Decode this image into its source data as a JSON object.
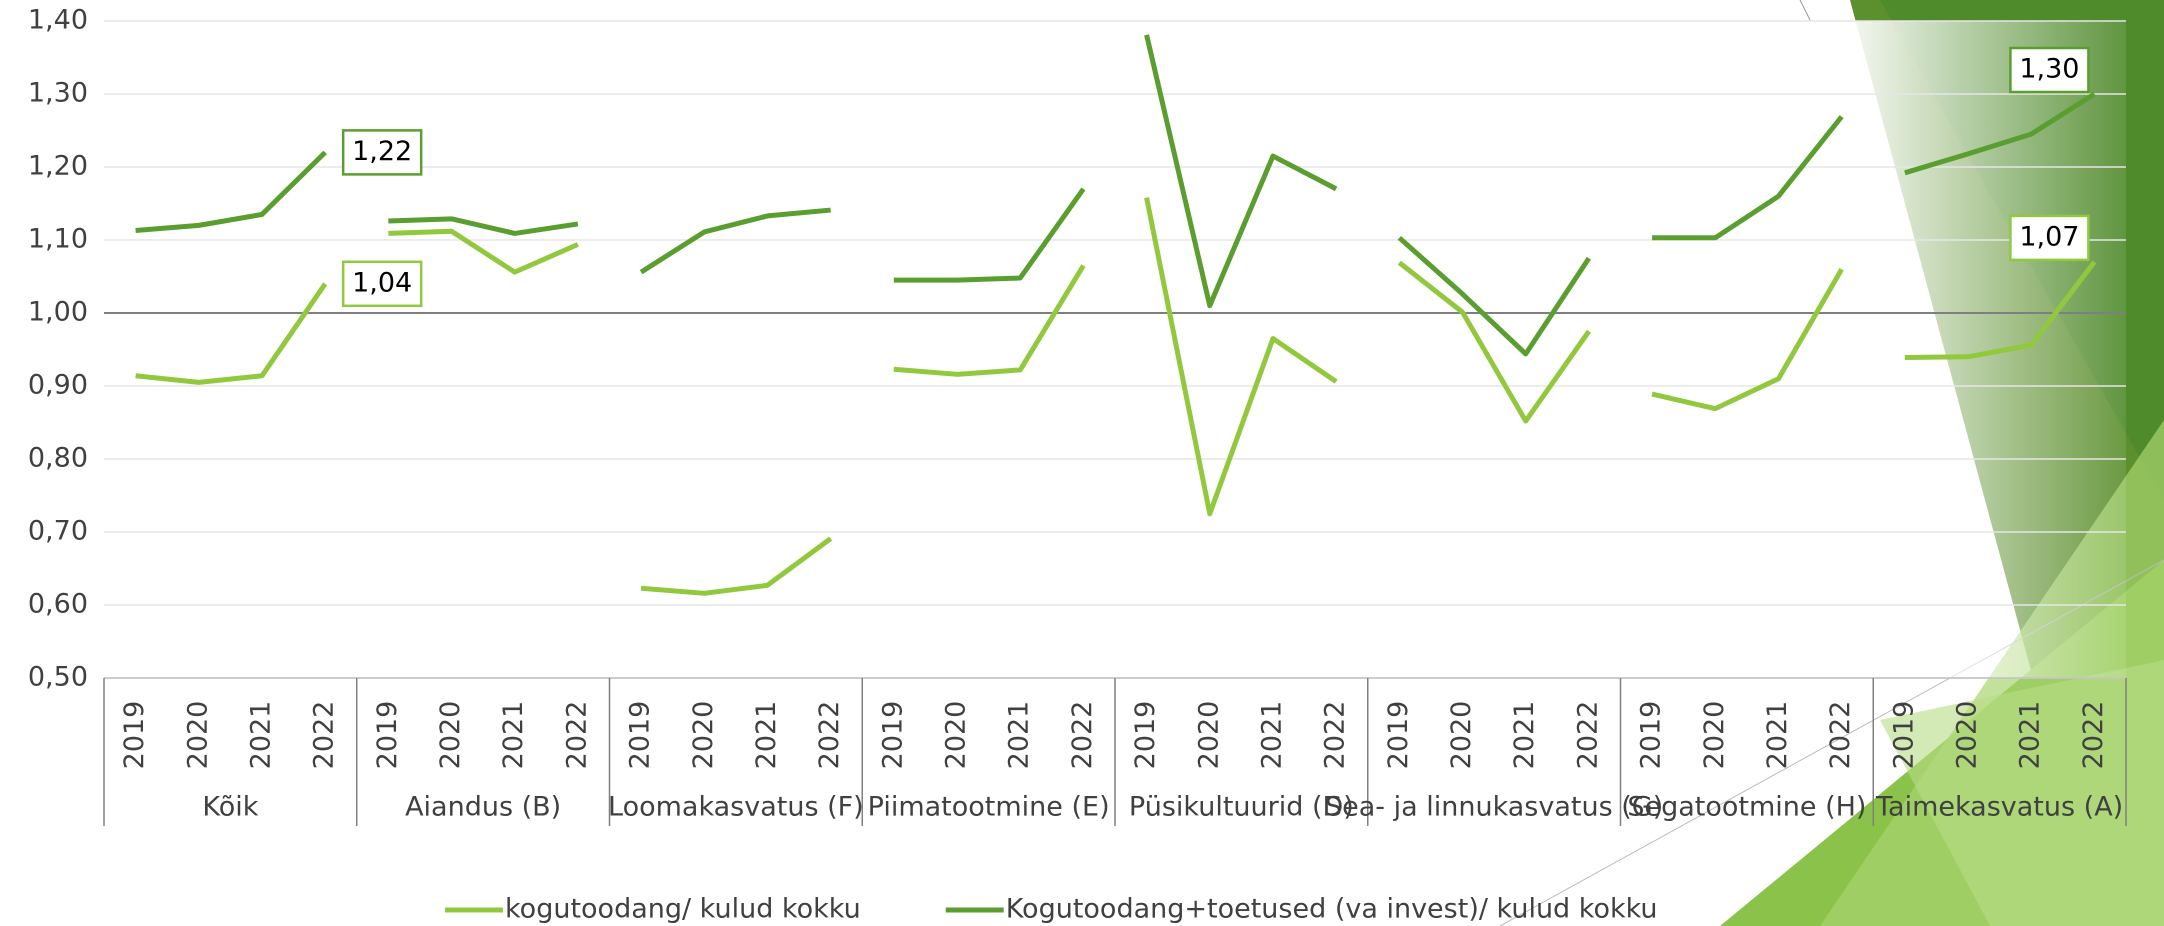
{
  "chart_data": {
    "type": "line",
    "groups": [
      "Kõik",
      "Aiandus (B)",
      "Loomakasvatus (F)",
      "Piimatootmine (E)",
      "Püsikultuurid (D)",
      "Sea- ja linnukasvatus (G)",
      "Segatootmine (H)",
      "Taimekasvatus (A)"
    ],
    "categories": [
      "2019",
      "2020",
      "2021",
      "2022",
      "2019",
      "2020",
      "2021",
      "2022",
      "2019",
      "2020",
      "2021",
      "2022",
      "2019",
      "2020",
      "2021",
      "2022",
      "2019",
      "2020",
      "2021",
      "2022",
      "2019",
      "2020",
      "2021",
      "2022",
      "2019",
      "2020",
      "2021",
      "2022",
      "2019",
      "2020",
      "2021",
      "2022"
    ],
    "series": [
      {
        "name": "kogutoodang/ kulud kokku",
        "color": "#92c83e",
        "values": [
          0.914,
          0.905,
          0.914,
          1.04,
          1.109,
          1.112,
          1.056,
          1.094,
          0.623,
          0.616,
          0.627,
          0.691,
          0.923,
          0.916,
          0.922,
          1.065,
          1.158,
          0.725,
          0.965,
          0.906,
          1.069,
          1.001,
          0.852,
          0.975,
          0.889,
          0.869,
          0.91,
          1.06,
          0.939,
          0.94,
          0.956,
          1.07
        ],
        "value_labels": [
          null,
          null,
          null,
          "1,04",
          null,
          null,
          null,
          null,
          null,
          null,
          null,
          null,
          null,
          null,
          null,
          null,
          null,
          null,
          null,
          null,
          null,
          null,
          null,
          null,
          null,
          null,
          null,
          null,
          null,
          null,
          null,
          "1,07"
        ]
      },
      {
        "name": "Kogutoodang+toetused (va invest)/ kulud kokku",
        "color": "#5a9e2f",
        "values": [
          1.113,
          1.12,
          1.135,
          1.22,
          1.126,
          1.129,
          1.109,
          1.122,
          1.056,
          1.111,
          1.133,
          1.141,
          1.045,
          1.045,
          1.048,
          1.17,
          1.381,
          1.01,
          1.215,
          1.17,
          1.103,
          1.026,
          0.944,
          1.075,
          1.103,
          1.103,
          1.16,
          1.269,
          1.192,
          1.218,
          1.245,
          1.3
        ],
        "value_labels": [
          null,
          null,
          null,
          "1,22",
          null,
          null,
          null,
          null,
          null,
          null,
          null,
          null,
          null,
          null,
          null,
          null,
          null,
          null,
          null,
          null,
          null,
          null,
          null,
          null,
          null,
          null,
          null,
          null,
          null,
          null,
          null,
          "1,30"
        ]
      }
    ],
    "ylim": [
      0.5,
      1.4
    ],
    "yticks": [
      {
        "value": 0.5,
        "label": "0,50"
      },
      {
        "value": 0.6,
        "label": "0,60"
      },
      {
        "value": 0.7,
        "label": "0,70"
      },
      {
        "value": 0.8,
        "label": "0,80"
      },
      {
        "value": 0.9,
        "label": "0,90"
      },
      {
        "value": 1,
        "label": "1,00"
      },
      {
        "value": 1.1,
        "label": "1,10"
      },
      {
        "value": 1.2,
        "label": "1,20"
      },
      {
        "value": 1.3,
        "label": "1,30"
      },
      {
        "value": 1.4,
        "label": "1,40"
      }
    ],
    "baseline": 1,
    "grid": true,
    "legend": "bottom"
  }
}
